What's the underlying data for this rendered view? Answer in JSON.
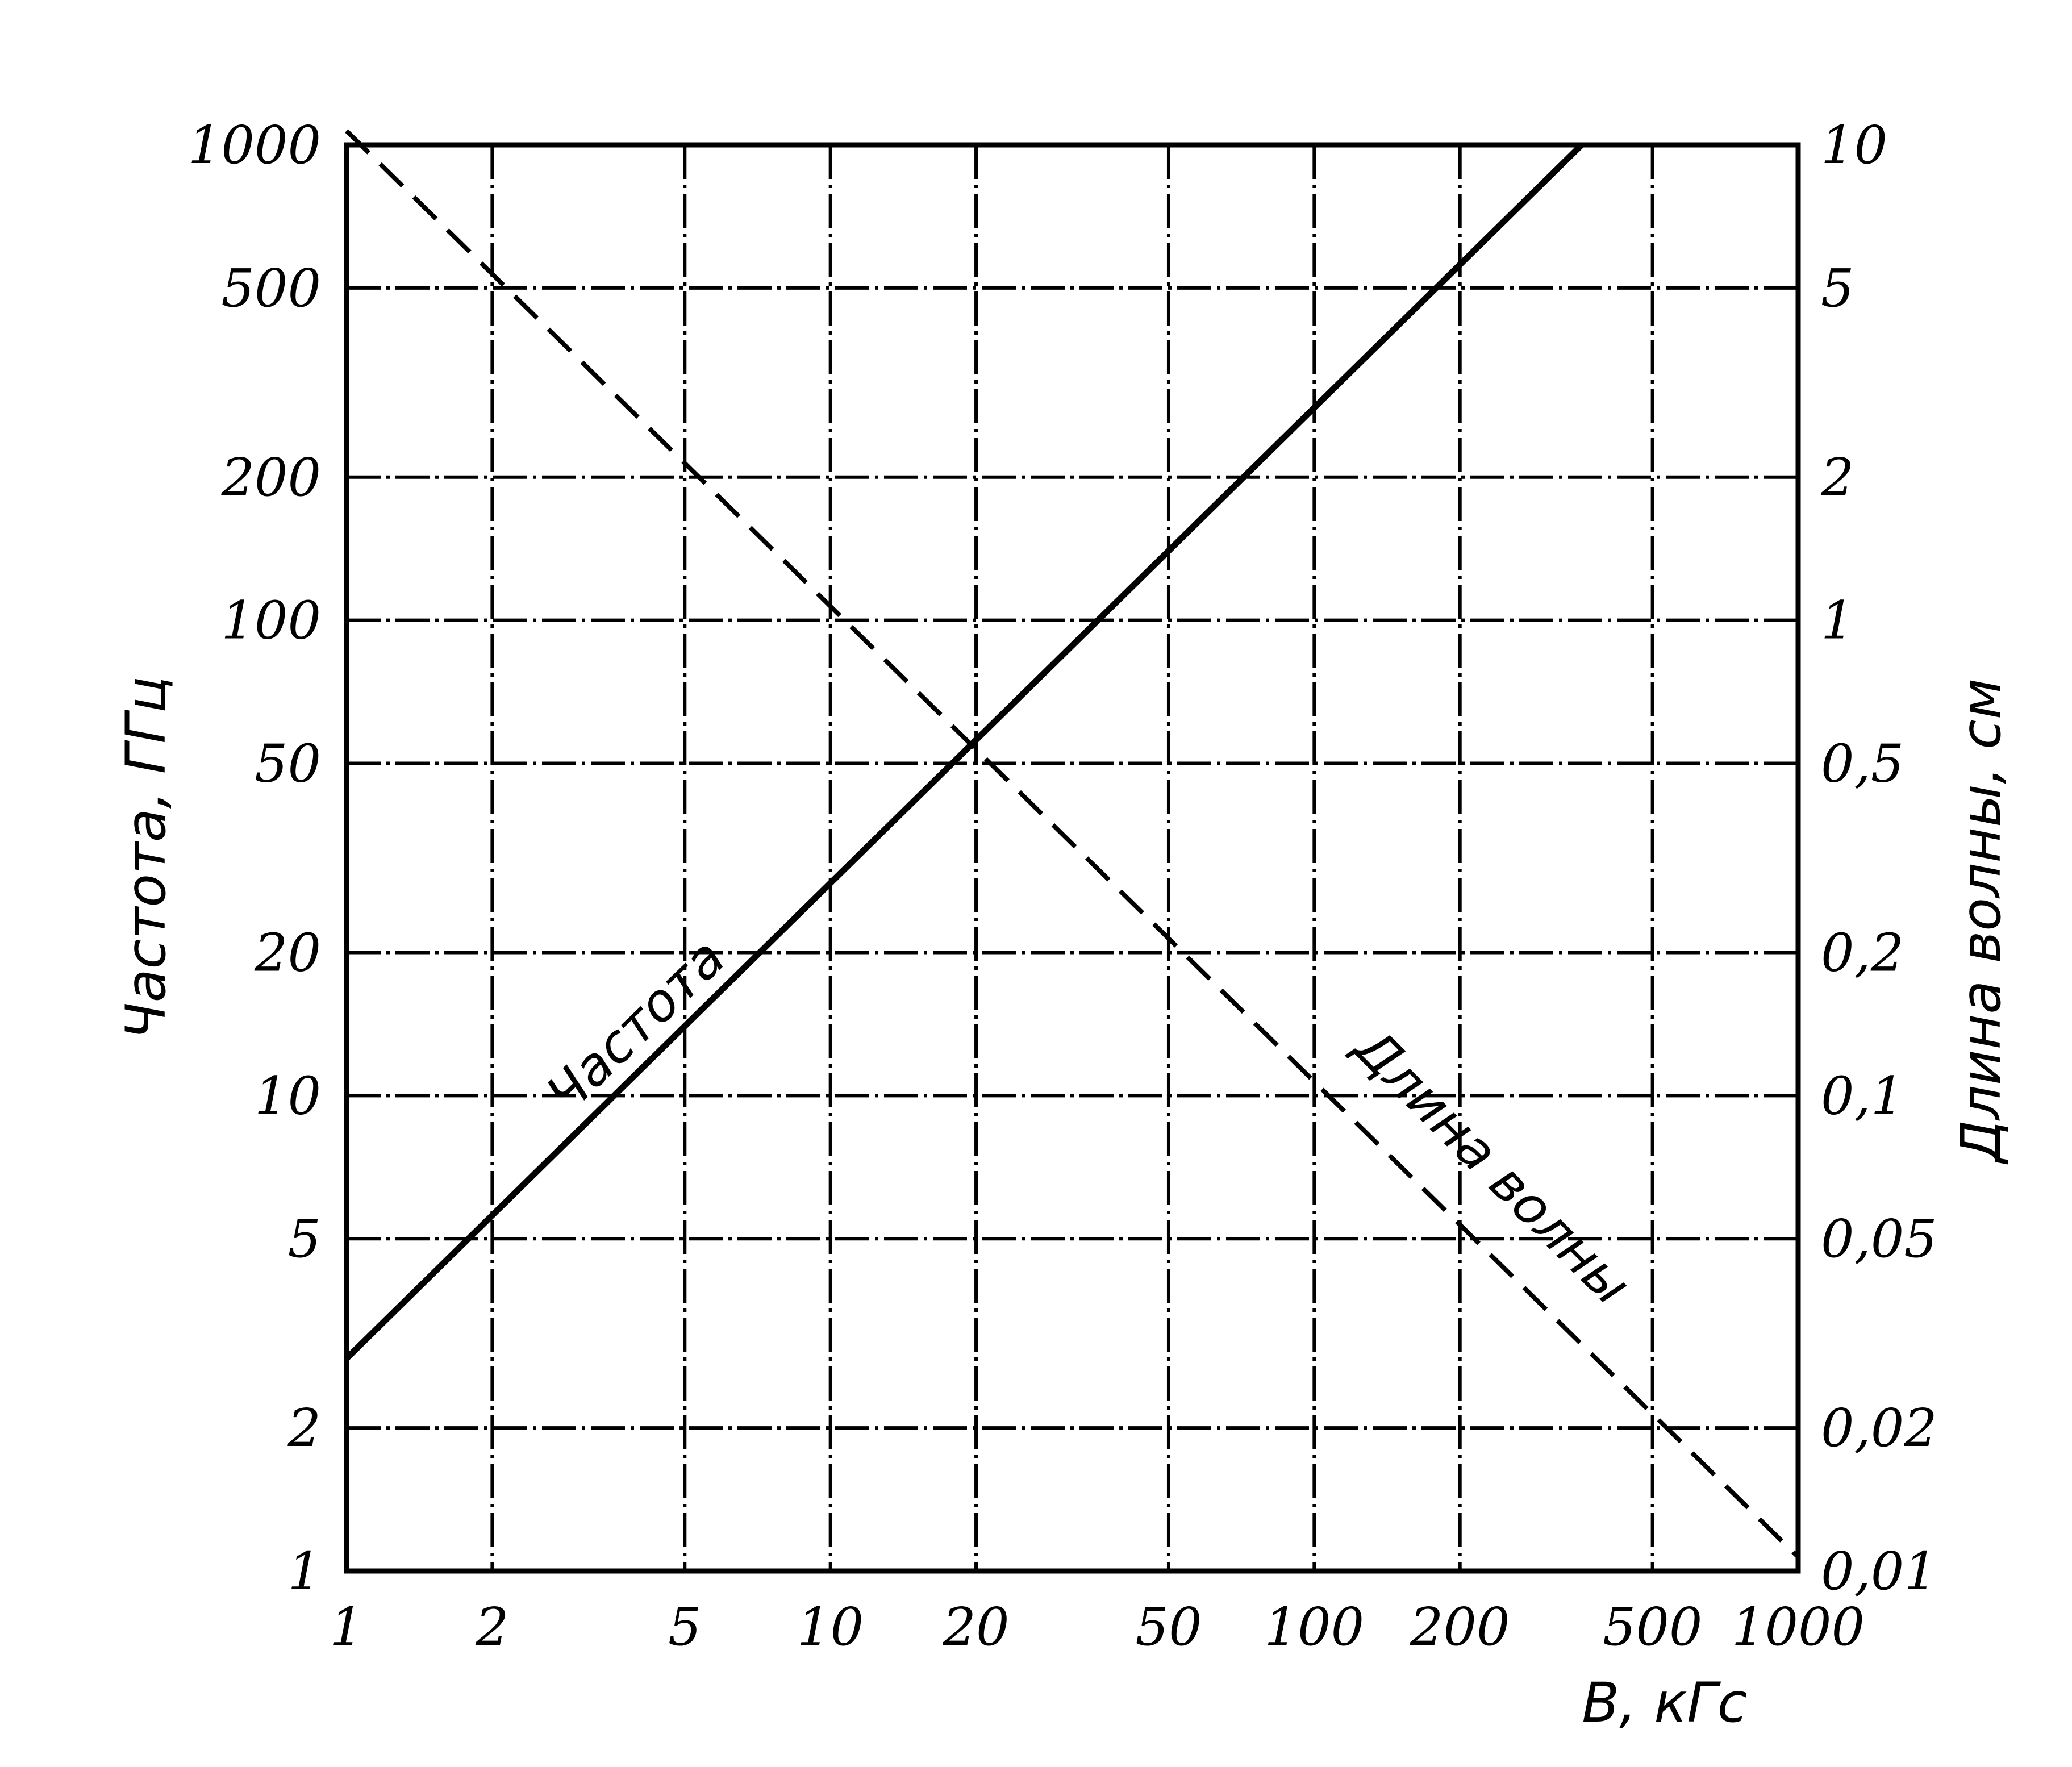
{
  "chart_data": {
    "type": "line",
    "title": "",
    "xlabel": "B, кГс",
    "ylabel_left": "Частота, ГГц",
    "ylabel_right": "Длина волны, см",
    "x_scale": "log",
    "y_left_scale": "log",
    "y_right_scale": "log",
    "xlim": [
      1,
      1000
    ],
    "ylim_left": [
      1,
      1000
    ],
    "ylim_right": [
      0.01,
      10
    ],
    "grid": true,
    "legend": "none",
    "x_ticks": [
      "1",
      "2",
      "5",
      "10",
      "20",
      "50",
      "100",
      "200",
      "500",
      "1000"
    ],
    "x_tick_values": [
      1,
      2,
      5,
      10,
      20,
      50,
      100,
      200,
      500,
      1000
    ],
    "y_left_ticks": [
      "1",
      "2",
      "5",
      "10",
      "20",
      "50",
      "100",
      "200",
      "500",
      "1000"
    ],
    "y_left_tick_values": [
      1,
      2,
      5,
      10,
      20,
      50,
      100,
      200,
      500,
      1000
    ],
    "y_right_ticks": [
      "0,01",
      "0,02",
      "0,05",
      "0,1",
      "0,2",
      "0,5",
      "1",
      "2",
      "5",
      "10"
    ],
    "y_right_tick_values": [
      0.01,
      0.02,
      0.05,
      0.1,
      0.2,
      0.5,
      1,
      2,
      5,
      10
    ],
    "series": [
      {
        "name": "Частота",
        "axis": "left",
        "style": "solid",
        "x": [
          1,
          2,
          5,
          10,
          20,
          50,
          100,
          200,
          357
        ],
        "y": [
          2.8,
          5.6,
          14,
          28,
          56,
          140,
          280,
          560,
          1000
        ]
      },
      {
        "name": "Длина волны",
        "axis": "right",
        "style": "dashed",
        "x": [
          1,
          2,
          5,
          10,
          20,
          50,
          100,
          200,
          500,
          1000
        ],
        "y": [
          10.7,
          5.35,
          2.14,
          1.07,
          0.535,
          0.214,
          0.107,
          0.0535,
          0.0214,
          0.0107
        ]
      }
    ]
  }
}
